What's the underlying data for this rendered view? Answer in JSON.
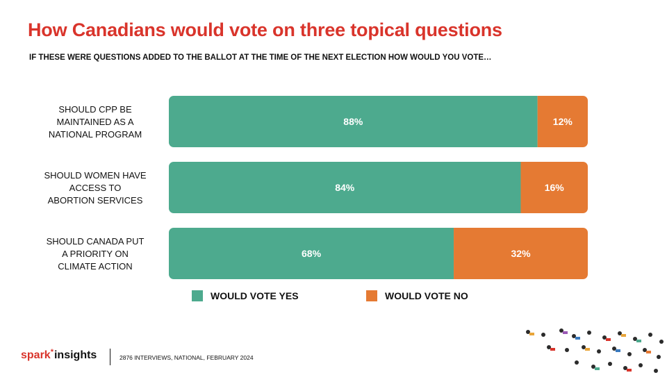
{
  "header": {
    "title": "How Canadians would vote on three topical questions",
    "subtitle": "IF THESE WERE QUESTIONS ADDED TO THE BALLOT AT THE TIME OF THE NEXT ELECTION HOW WOULD YOU VOTE…"
  },
  "colors": {
    "yes": "#4daa8e",
    "no": "#e57a33",
    "title": "#d9342b"
  },
  "chart_data": {
    "type": "bar",
    "orientation": "horizontal",
    "stacked": true,
    "categories": [
      [
        "SHOULD CPP BE",
        "MAINTAINED AS A",
        "NATIONAL PROGRAM"
      ],
      [
        "SHOULD WOMEN HAVE",
        "ACCESS TO",
        "ABORTION SERVICES"
      ],
      [
        "SHOULD CANADA PUT",
        "A PRIORITY ON",
        "CLIMATE ACTION"
      ]
    ],
    "series": [
      {
        "name": "WOULD VOTE YES",
        "values": [
          88,
          84,
          68
        ],
        "labels": [
          "88%",
          "84%",
          "68%"
        ]
      },
      {
        "name": "WOULD VOTE NO",
        "values": [
          12,
          16,
          32
        ],
        "labels": [
          "12%",
          "16%",
          "32%"
        ]
      }
    ],
    "xlim": [
      0,
      100
    ],
    "legend": "bottom",
    "grid": false
  },
  "footer": {
    "brand_spark": "spark",
    "brand_star": "*",
    "brand_insights": "insights",
    "note": "2876 INTERVIEWS, NATIONAL, FEBRUARY 2024"
  }
}
